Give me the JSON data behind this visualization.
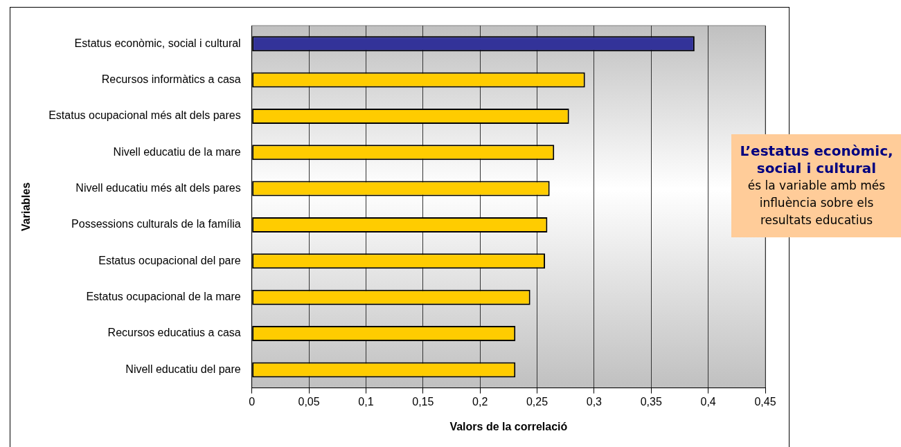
{
  "chart_data": {
    "type": "bar",
    "orientation": "horizontal",
    "xlabel": "Valors de la correlació",
    "ylabel": "Variables",
    "categories": [
      "Estatus econòmic, social i cultural",
      "Recursos informàtics a casa",
      "Estatus ocupacional més alt dels pares",
      "Nivell educatiu de la mare",
      "Nivell educatiu més alt dels pares",
      "Possessions culturals de la família",
      "Estatus ocupacional del pare",
      "Estatus ocupacional de la mare",
      "Recursos educatius a casa",
      "Nivell educatiu del pare"
    ],
    "values": [
      0.388,
      0.292,
      0.278,
      0.265,
      0.261,
      0.259,
      0.257,
      0.244,
      0.231,
      0.231
    ],
    "colors": [
      "#333399",
      "#ffcc00",
      "#ffcc00",
      "#ffcc00",
      "#ffcc00",
      "#ffcc00",
      "#ffcc00",
      "#ffcc00",
      "#ffcc00",
      "#ffcc00"
    ],
    "xlim": [
      0,
      0.45
    ],
    "xticks": [
      0,
      {
        "value": 0.05,
        "label": "0,05"
      },
      {
        "value": 0.1,
        "label": "0,1"
      },
      {
        "value": 0.15,
        "label": "0,15"
      },
      {
        "value": 0.2,
        "label": "0,2"
      },
      {
        "value": 0.25,
        "label": "0,25"
      },
      {
        "value": 0.3,
        "label": "0,3"
      },
      {
        "value": 0.35,
        "label": "0,35"
      },
      {
        "value": 0.4,
        "label": "0,4"
      },
      {
        "value": 0.45,
        "label": "0,45"
      }
    ],
    "grid": "x",
    "legend": false,
    "annotations": [
      "L’estatus econòmic, social i cultural",
      "és la variable amb més influència sobre els resultats educatius"
    ]
  }
}
